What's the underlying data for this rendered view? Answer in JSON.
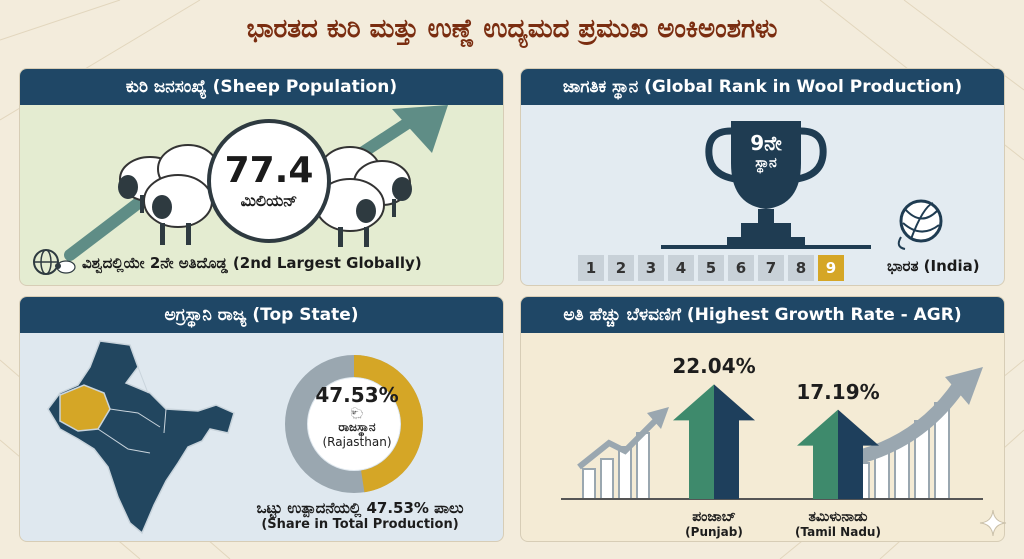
{
  "page": {
    "title": "ಭಾರತದ ಕುರಿ ಮತ್ತು ಉಣ್ಣೆ ಉದ್ಯಮದ ಪ್ರಮುಖ ಅಂಕಿಅಂಶಗಳು"
  },
  "sheep_population": {
    "header": "ಕುರಿ ಜನಸಂಖ್ಯೆ (Sheep Population)",
    "value": "77.4",
    "unit": "ಮಿಲಿಯನ್",
    "caption": "ವಿಶ್ವದಲ್ಲಿಯೇ 2ನೇ ಅತಿದೊಡ್ಡ (2nd Largest Globally)",
    "icons": [
      "sheep-flock-icon",
      "trend-up-arrow-icon",
      "globe-icon",
      "sheep-icon"
    ]
  },
  "global_rank": {
    "header": "ಜಾಗತಿಕ ಸ್ಥಾನ (Global Rank in Wool Production)",
    "trophy_rank": "9ನೇ",
    "trophy_word": "ಸ್ಥಾನ",
    "ranks": [
      "1",
      "2",
      "3",
      "4",
      "5",
      "6",
      "7",
      "8",
      "9"
    ],
    "active_rank_index": 8,
    "country_label": "ಭಾರತ (India)",
    "icons": [
      "trophy-icon",
      "yarn-ball-icon"
    ]
  },
  "top_state": {
    "header": "ಅಗ್ರಸ್ಥಾನಿ ರಾಜ್ಯ (Top State)",
    "share_percent": 47.53,
    "share_label": "47.53%",
    "state_kn": "ರಾಜಸ್ಥಾನ",
    "state_en": "(Rajasthan)",
    "caption_kn": "ಒಟ್ಟು ಉತ್ಪಾದನೆಯಲ್ಲಿ 47.53% ಪಾಲು",
    "caption_en": "(Share in Total Production)",
    "colors": {
      "highlight": "#d5a626",
      "rest": "#9aa7b0",
      "map": "#22465f"
    },
    "icons": [
      "india-map-icon",
      "sheep-icon"
    ]
  },
  "growth_rate": {
    "header": "ಅತಿ ಹೆಚ್ಚು ಬೆಳವಣಿಗೆ (Highest Growth Rate - AGR)",
    "bars": [
      {
        "pct": 22.04,
        "pct_label": "22.04%",
        "name_kn": "ಪಂಜಾಬ್",
        "name_en": "(Punjab)"
      },
      {
        "pct": 17.19,
        "pct_label": "17.19%",
        "name_kn": "ತಮಿಳುನಾಡು",
        "name_en": "(Tamil Nadu)"
      }
    ],
    "colors": {
      "arrow_left": "#3e8a6c",
      "arrow_right": "#1e3f5c"
    },
    "icons": [
      "growth-arrow-icon",
      "rising-bars-icon"
    ]
  },
  "footer": {
    "icons": [
      "sparkle-icon"
    ]
  }
}
